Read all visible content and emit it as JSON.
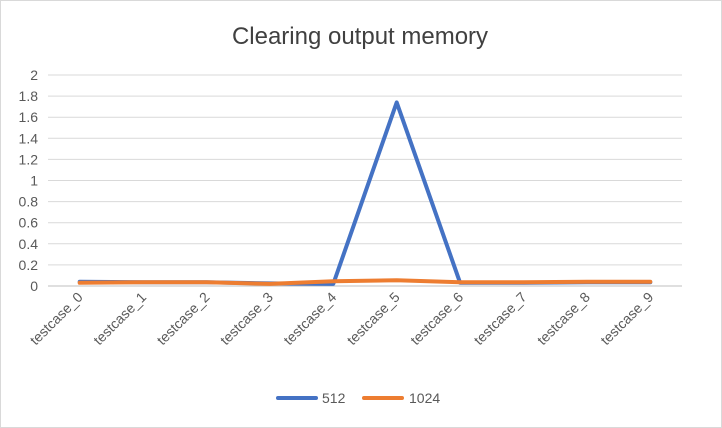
{
  "chart_data": {
    "type": "line",
    "title": "Clearing output memory",
    "xlabel": "",
    "ylabel": "",
    "ylim": [
      0,
      2
    ],
    "y_ticks": [
      "0",
      "0.2",
      "0.4",
      "0.6",
      "0.8",
      "1",
      "1.2",
      "1.4",
      "1.6",
      "1.8",
      "2"
    ],
    "categories": [
      "testcase_0",
      "testcase_1",
      "testcase_2",
      "testcase_3",
      "testcase_4",
      "testcase_5",
      "testcase_6",
      "testcase_7",
      "testcase_8",
      "testcase_9"
    ],
    "grid": "horizontal",
    "legend_position": "bottom",
    "series": [
      {
        "name": "512",
        "color": "#4472c4",
        "values": [
          0.04,
          0.035,
          0.035,
          0.025,
          0.02,
          1.74,
          0.03,
          0.03,
          0.035,
          0.035
        ]
      },
      {
        "name": "1024",
        "color": "#ed7d31",
        "values": [
          0.03,
          0.035,
          0.035,
          0.02,
          0.045,
          0.055,
          0.035,
          0.035,
          0.04,
          0.04
        ]
      }
    ]
  }
}
